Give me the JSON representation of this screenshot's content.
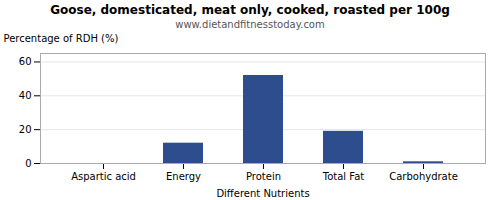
{
  "chart_data": {
    "type": "bar",
    "title": "Goose, domesticated, meat only, cooked, roasted per 100g",
    "subtitle": "www.dietandfitnesstoday.com",
    "xlabel": "Different Nutrients",
    "ylabel": "Percentage of RDH (%)",
    "categories": [
      "Aspartic acid",
      "Energy",
      "Protein",
      "Total Fat",
      "Carbohydrate"
    ],
    "values": [
      0,
      12,
      52,
      19,
      1
    ],
    "color": "#2e4d8e",
    "ylim": [
      0,
      65
    ],
    "yticks": [
      0,
      20,
      40,
      60
    ],
    "grid": true
  }
}
